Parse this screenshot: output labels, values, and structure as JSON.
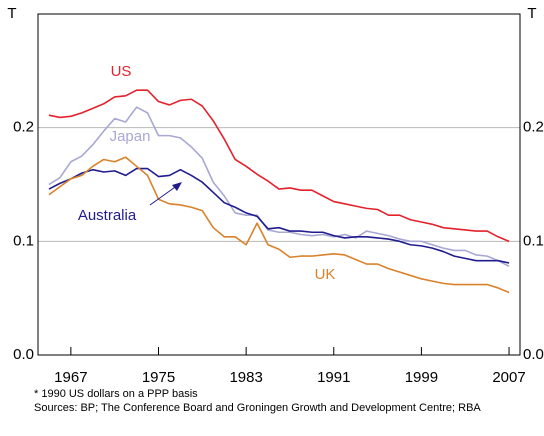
{
  "chart_data": {
    "type": "line",
    "y_unit": "T",
    "x": [
      1965,
      1966,
      1967,
      1968,
      1969,
      1970,
      1971,
      1972,
      1973,
      1974,
      1975,
      1976,
      1977,
      1978,
      1979,
      1980,
      1981,
      1982,
      1983,
      1984,
      1985,
      1986,
      1987,
      1988,
      1989,
      1990,
      1991,
      1992,
      1993,
      1994,
      1995,
      1996,
      1997,
      1998,
      1999,
      2000,
      2001,
      2002,
      2003,
      2004,
      2005,
      2006,
      2007
    ],
    "series": [
      {
        "name": "US",
        "color": "#e3222b",
        "values": [
          0.211,
          0.209,
          0.21,
          0.213,
          0.217,
          0.221,
          0.227,
          0.228,
          0.233,
          0.233,
          0.223,
          0.22,
          0.224,
          0.225,
          0.219,
          0.206,
          0.19,
          0.172,
          0.166,
          0.159,
          0.153,
          0.146,
          0.147,
          0.145,
          0.145,
          0.14,
          0.135,
          0.133,
          0.131,
          0.129,
          0.128,
          0.123,
          0.123,
          0.119,
          0.117,
          0.115,
          0.112,
          0.111,
          0.11,
          0.109,
          0.109,
          0.104,
          0.1
        ]
      },
      {
        "name": "Japan",
        "color": "#a8a8d4",
        "values": [
          0.15,
          0.156,
          0.17,
          0.175,
          0.185,
          0.197,
          0.208,
          0.205,
          0.218,
          0.213,
          0.193,
          0.193,
          0.191,
          0.183,
          0.173,
          0.152,
          0.14,
          0.125,
          0.123,
          0.123,
          0.11,
          0.108,
          0.108,
          0.106,
          0.105,
          0.106,
          0.104,
          0.106,
          0.103,
          0.109,
          0.107,
          0.105,
          0.102,
          0.1,
          0.1,
          0.097,
          0.094,
          0.092,
          0.092,
          0.088,
          0.087,
          0.083,
          0.078
        ]
      },
      {
        "name": "Australia",
        "color": "#201c8e",
        "values": [
          0.146,
          0.151,
          0.155,
          0.16,
          0.163,
          0.161,
          0.162,
          0.158,
          0.164,
          0.164,
          0.157,
          0.158,
          0.163,
          0.158,
          0.152,
          0.143,
          0.134,
          0.13,
          0.125,
          0.122,
          0.111,
          0.112,
          0.109,
          0.109,
          0.108,
          0.108,
          0.105,
          0.103,
          0.104,
          0.104,
          0.103,
          0.102,
          0.1,
          0.097,
          0.096,
          0.094,
          0.091,
          0.087,
          0.085,
          0.083,
          0.083,
          0.083,
          0.081
        ]
      },
      {
        "name": "UK",
        "color": "#d9822b",
        "values": [
          0.141,
          0.148,
          0.155,
          0.158,
          0.166,
          0.172,
          0.17,
          0.174,
          0.166,
          0.158,
          0.137,
          0.133,
          0.132,
          0.13,
          0.127,
          0.112,
          0.104,
          0.104,
          0.097,
          0.116,
          0.097,
          0.093,
          0.086,
          0.087,
          0.087,
          0.088,
          0.089,
          0.088,
          0.084,
          0.08,
          0.08,
          0.076,
          0.073,
          0.07,
          0.067,
          0.065,
          0.063,
          0.062,
          0.062,
          0.062,
          0.062,
          0.059,
          0.055
        ]
      }
    ],
    "xlim": [
      1964,
      2008
    ],
    "xticks": [
      1967,
      1975,
      1983,
      1991,
      1999,
      2007
    ],
    "ylim": [
      0,
      0.3
    ],
    "yticks": [
      {
        "value": 0,
        "label": "0.0"
      },
      0.1,
      0.2
    ],
    "grid": true,
    "footnote": "*   1990 US dollars on a PPP basis",
    "sources": "Sources: BP; The Conference Board and Groningen Growth and Development Centre; RBA"
  }
}
